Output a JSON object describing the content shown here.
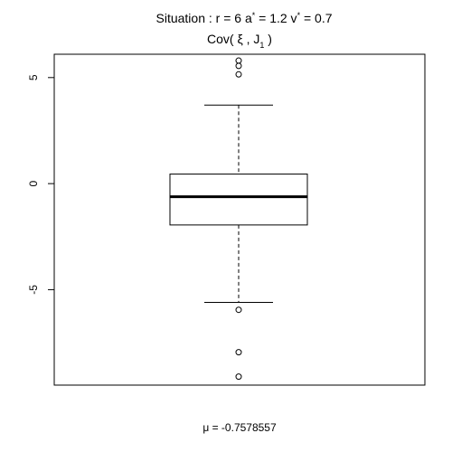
{
  "chart_data": {
    "type": "boxplot",
    "title": {
      "prefix": "Situation :  r = 6 a",
      "mid1": " = 1.2 v",
      "mid2": " = 0.7",
      "star": "*"
    },
    "subtitle": {
      "pre": "Cov( ",
      "xi": "ξ",
      "mid": " , J",
      "sub": "1",
      "post": " )"
    },
    "xlabel": "μ = -0.7578557",
    "ylim": [
      -9.5,
      6.1
    ],
    "yticks": [
      {
        "value": 5,
        "label": "5"
      },
      {
        "value": 0,
        "label": "0"
      },
      {
        "value": -5,
        "label": "-5"
      }
    ],
    "box": {
      "whisker_low": -5.6,
      "q1": -1.95,
      "median": -0.62,
      "q3": 0.45,
      "whisker_high": 3.7
    },
    "outliers": [
      5.8,
      5.55,
      5.15,
      -5.95,
      -7.95,
      -9.1
    ]
  }
}
